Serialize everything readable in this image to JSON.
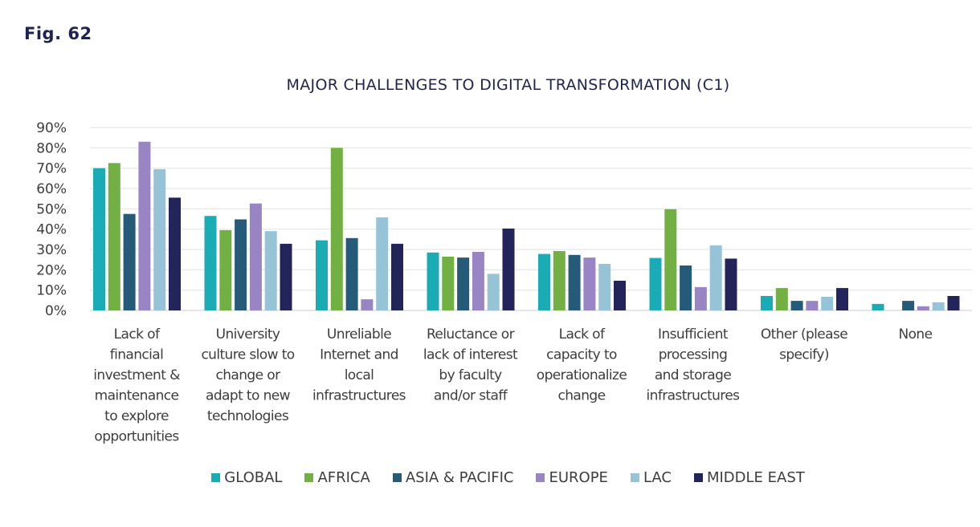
{
  "figure_label": "Fig. 62",
  "chart_data": {
    "type": "bar",
    "title": "MAJOR CHALLENGES TO DIGITAL TRANSFORMATION (C1)",
    "xlabel": "",
    "ylabel": "",
    "ylim": [
      0,
      90
    ],
    "y_ticks": [
      "0%",
      "10%",
      "20%",
      "30%",
      "40%",
      "50%",
      "60%",
      "70%",
      "80%",
      "90%"
    ],
    "y_tick_values": [
      0,
      10,
      20,
      30,
      40,
      50,
      60,
      70,
      80,
      90
    ],
    "grid": true,
    "legend_position": "bottom",
    "categories": [
      [
        "Lack of",
        "financial",
        "investment &",
        "maintenance",
        "to explore",
        "opportunities"
      ],
      [
        "University",
        "culture slow to",
        "change or",
        "adapt to new",
        "technologies"
      ],
      [
        "Unreliable",
        "Internet and",
        "local",
        "infrastructures"
      ],
      [
        "Reluctance or",
        "lack of interest",
        "by faculty",
        "and/or staff"
      ],
      [
        "Lack of",
        "capacity to",
        "operationalize",
        "change"
      ],
      [
        "Insufficient",
        "processing",
        "and storage",
        "infrastructures"
      ],
      [
        "Other (please",
        "specify)"
      ],
      [
        "None"
      ]
    ],
    "series": [
      {
        "name": "GLOBAL",
        "color": "#1aabb5",
        "values": [
          70,
          46.5,
          34.5,
          28.5,
          27.8,
          25.8,
          7.1,
          3.2
        ]
      },
      {
        "name": "AFRICA",
        "color": "#72b043",
        "values": [
          72.5,
          39.5,
          80,
          26.5,
          29.2,
          49.8,
          11,
          0
        ]
      },
      {
        "name": "ASIA & PACIFIC",
        "color": "#255a78",
        "values": [
          47.5,
          44.8,
          35.6,
          26,
          27.3,
          22.1,
          4.7,
          4.7
        ]
      },
      {
        "name": "EUROPE",
        "color": "#9a85c4",
        "values": [
          83,
          52.6,
          5.5,
          28.8,
          26,
          11.5,
          4.7,
          2
        ]
      },
      {
        "name": "LAC",
        "color": "#96c3d6",
        "values": [
          69.5,
          39,
          45.8,
          18,
          22.9,
          32,
          6.7,
          4
        ]
      },
      {
        "name": "MIDDLE EAST",
        "color": "#22245a",
        "values": [
          55.5,
          32.8,
          32.8,
          40.3,
          14.6,
          25.5,
          11,
          7.1
        ]
      }
    ]
  }
}
